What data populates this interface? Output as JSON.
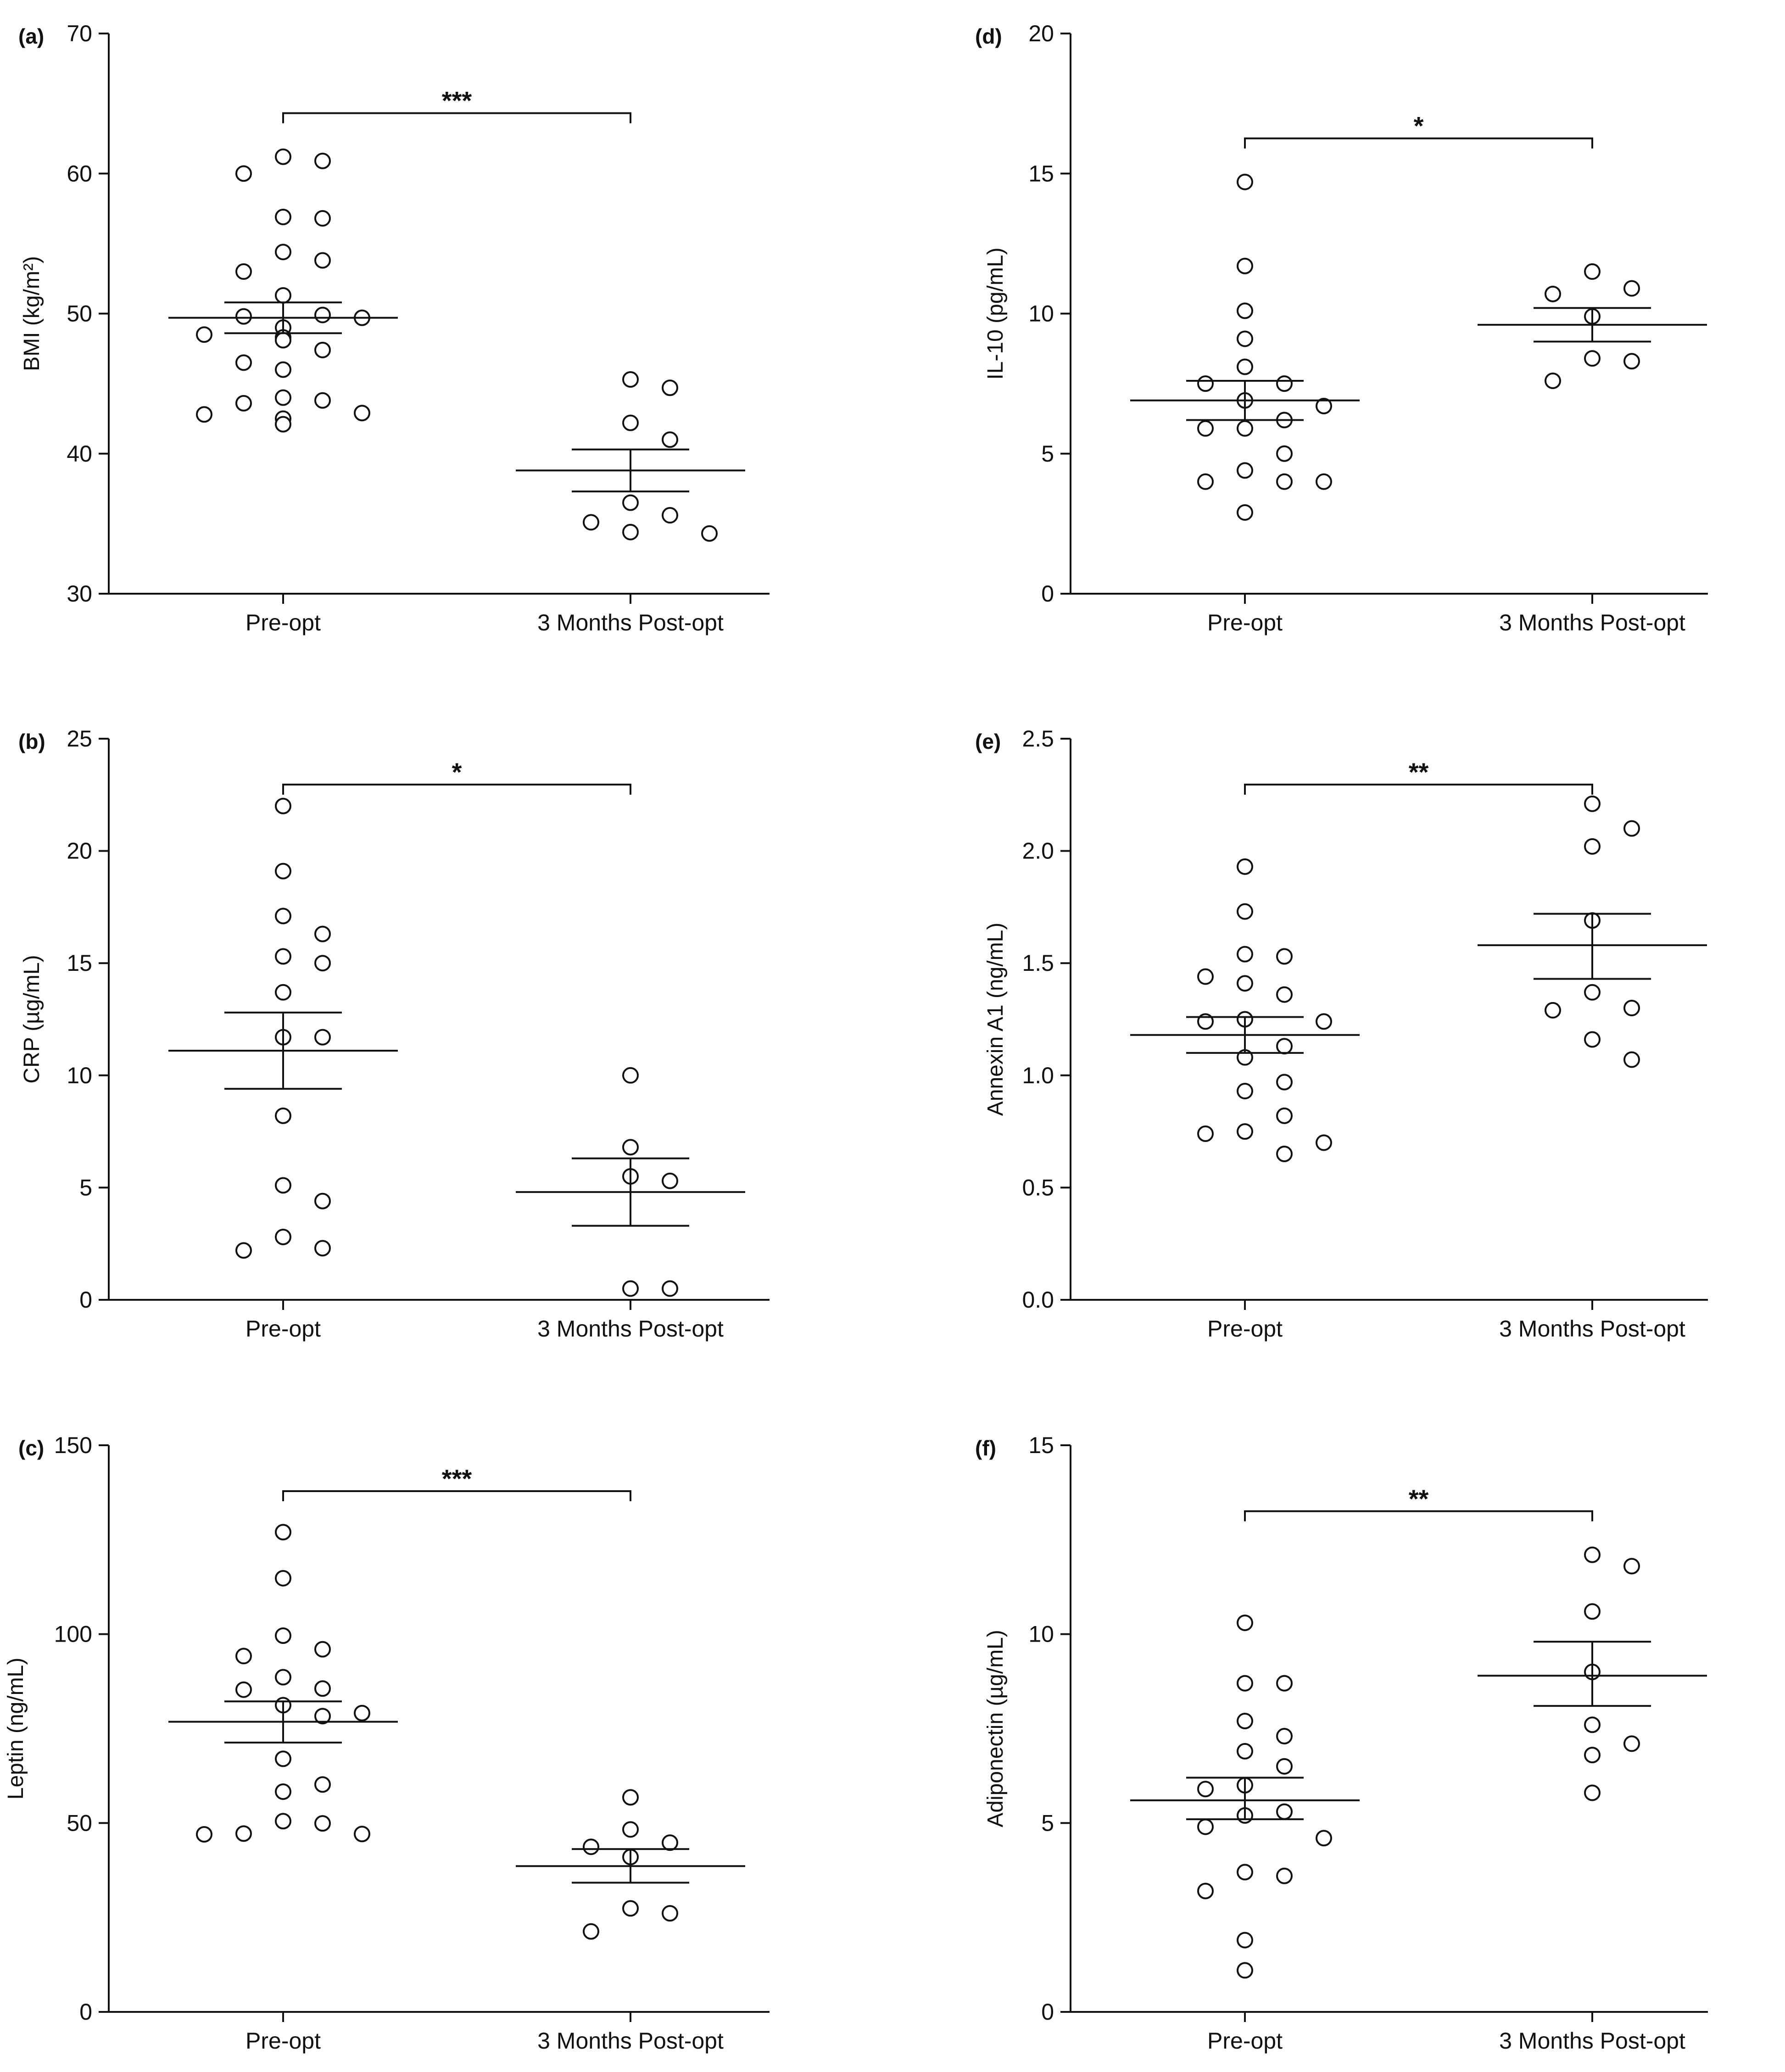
{
  "figure": {
    "panels": [
      {
        "letter": "(a)",
        "ylabel": "BMI (kg/m²)"
      },
      {
        "letter": "(b)",
        "ylabel": "CRP (µg/mL)"
      },
      {
        "letter": "(c)",
        "ylabel": "Leptin (ng/mL)"
      },
      {
        "letter": "(d)",
        "ylabel": "IL-10  (pg/mL)"
      },
      {
        "letter": "(e)",
        "ylabel": "Annexin A1 (ng/mL)"
      },
      {
        "letter": "(f)",
        "ylabel": "Adiponectin (µg/mL)"
      }
    ]
  },
  "chart_data": [
    {
      "type": "scatter",
      "panel": "(a)",
      "ylabel": "BMI (kg/m²)",
      "categories": [
        "Pre-opt",
        "3 Months Post-opt"
      ],
      "ylim": [
        30,
        70
      ],
      "yticks": [
        30,
        40,
        50,
        60,
        70
      ],
      "significance": "***",
      "groups": [
        {
          "category": "Pre-opt",
          "mean": 49.7,
          "sem_upper": 50.8,
          "sem_lower": 48.6,
          "points": [
            61.2,
            60.9,
            60.0,
            56.9,
            56.8,
            54.4,
            53.8,
            53.0,
            51.3,
            49.9,
            49.8,
            49.7,
            49.0,
            48.5,
            48.3,
            48.1,
            47.4,
            46.5,
            46.0,
            44.0,
            43.8,
            43.6,
            42.9,
            42.8,
            42.5,
            42.1
          ]
        },
        {
          "category": "3 Months Post-opt",
          "mean": 38.8,
          "sem_upper": 40.3,
          "sem_lower": 37.3,
          "points": [
            45.3,
            44.7,
            42.2,
            41.0,
            36.5,
            35.6,
            35.1,
            34.4,
            34.3
          ]
        }
      ]
    },
    {
      "type": "scatter",
      "panel": "(b)",
      "ylabel": "CRP (µg/mL)",
      "categories": [
        "Pre-opt",
        "3 Months Post-opt"
      ],
      "ylim": [
        0,
        25
      ],
      "yticks": [
        0,
        5,
        10,
        15,
        20,
        25
      ],
      "significance": "*",
      "groups": [
        {
          "category": "Pre-opt",
          "mean": 11.1,
          "sem_upper": 12.8,
          "sem_lower": 9.4,
          "points": [
            22.0,
            19.1,
            17.1,
            16.3,
            15.3,
            15.0,
            13.7,
            11.7,
            11.7,
            8.2,
            5.1,
            4.4,
            2.8,
            2.3,
            2.2
          ]
        },
        {
          "category": "3 Months Post-opt",
          "mean": 4.8,
          "sem_upper": 6.3,
          "sem_lower": 3.3,
          "points": [
            10.0,
            6.8,
            5.5,
            5.3,
            0.5,
            0.5
          ]
        }
      ]
    },
    {
      "type": "scatter",
      "panel": "(c)",
      "ylabel": "Leptin (ng/mL)",
      "categories": [
        "Pre-opt",
        "3 Months Post-opt"
      ],
      "ylim": [
        0,
        150
      ],
      "yticks": [
        0,
        50,
        100,
        150
      ],
      "significance": "***",
      "groups": [
        {
          "category": "Pre-opt",
          "mean": 76.8,
          "sem_upper": 82.2,
          "sem_lower": 71.3,
          "points": [
            127.0,
            114.8,
            99.6,
            96.0,
            94.2,
            88.6,
            85.6,
            85.3,
            81.2,
            79.1,
            78.3,
            67.0,
            60.2,
            58.3,
            50.5,
            49.9,
            47.2,
            47.1,
            47.0
          ]
        },
        {
          "category": "3 Months Post-opt",
          "mean": 38.6,
          "sem_upper": 43.1,
          "sem_lower": 34.2,
          "points": [
            56.8,
            48.3,
            44.8,
            43.7,
            41.0,
            27.4,
            26.1,
            21.3
          ]
        }
      ]
    },
    {
      "type": "scatter",
      "panel": "(d)",
      "ylabel": "IL-10  (pg/mL)",
      "categories": [
        "Pre-opt",
        "3 Months Post-opt"
      ],
      "ylim": [
        0,
        20
      ],
      "yticks": [
        0,
        5,
        10,
        15,
        20
      ],
      "significance": "*",
      "groups": [
        {
          "category": "Pre-opt",
          "mean": 6.9,
          "sem_upper": 7.6,
          "sem_lower": 6.2,
          "points": [
            14.7,
            11.7,
            10.1,
            9.1,
            8.1,
            7.5,
            7.5,
            6.9,
            6.7,
            6.2,
            5.9,
            5.9,
            5.0,
            4.4,
            4.0,
            4.0,
            4.0,
            2.9
          ]
        },
        {
          "category": "3 Months Post-opt",
          "mean": 9.6,
          "sem_upper": 10.2,
          "sem_lower": 9.0,
          "points": [
            11.5,
            10.9,
            10.7,
            9.9,
            8.4,
            8.3,
            7.6
          ]
        }
      ]
    },
    {
      "type": "scatter",
      "panel": "(e)",
      "ylabel": "Annexin A1 (ng/mL)",
      "categories": [
        "Pre-opt",
        "3 Months Post-opt"
      ],
      "ylim": [
        0,
        2.5
      ],
      "yticks": [
        "0.0",
        "0.5",
        "1.0",
        "1.5",
        "2.0",
        "2.5"
      ],
      "significance": "**",
      "groups": [
        {
          "category": "Pre-opt",
          "mean": 1.18,
          "sem_upper": 1.26,
          "sem_lower": 1.1,
          "points": [
            1.93,
            1.73,
            1.54,
            1.53,
            1.44,
            1.41,
            1.36,
            1.25,
            1.24,
            1.24,
            1.13,
            1.08,
            0.97,
            0.93,
            0.82,
            0.75,
            0.74,
            0.7,
            0.65
          ]
        },
        {
          "category": "3 Months Post-opt",
          "mean": 1.58,
          "sem_upper": 1.72,
          "sem_lower": 1.43,
          "points": [
            2.21,
            2.1,
            2.02,
            1.69,
            1.37,
            1.3,
            1.29,
            1.16,
            1.07
          ]
        }
      ]
    },
    {
      "type": "scatter",
      "panel": "(f)",
      "ylabel": "Adiponectin (µg/mL)",
      "categories": [
        "Pre-opt",
        "3 Months Post-opt"
      ],
      "ylim": [
        0,
        15
      ],
      "yticks": [
        0,
        5,
        10,
        15
      ],
      "significance": "**",
      "groups": [
        {
          "category": "Pre-opt",
          "mean": 5.6,
          "sem_upper": 6.2,
          "sem_lower": 5.1,
          "points": [
            10.3,
            8.7,
            8.7,
            7.7,
            7.3,
            6.9,
            6.5,
            6.0,
            5.9,
            5.3,
            5.2,
            4.9,
            4.6,
            3.7,
            3.6,
            3.2,
            1.9,
            1.1
          ]
        },
        {
          "category": "3 Months Post-opt",
          "mean": 8.9,
          "sem_upper": 9.8,
          "sem_lower": 8.1,
          "points": [
            12.1,
            11.8,
            10.6,
            9.0,
            7.6,
            7.1,
            6.8,
            5.8
          ]
        }
      ]
    }
  ]
}
